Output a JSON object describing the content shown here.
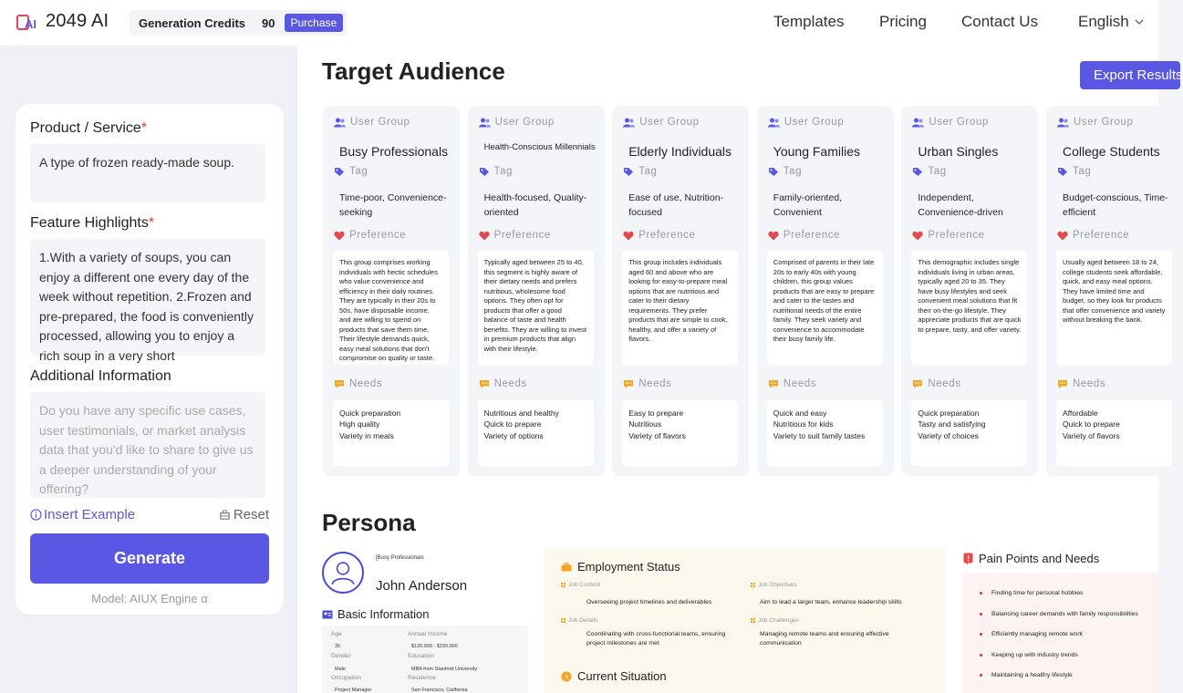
{
  "header": {
    "logo_text": "2049 AI",
    "credits_label": "Generation Credits",
    "credits_count": "90",
    "purchase_label": "Purchase",
    "nav": [
      "Templates",
      "Pricing",
      "Contact Us"
    ],
    "language": "English"
  },
  "form": {
    "product_label": "Product / Service",
    "product_value": "A type of frozen ready-made soup.",
    "features_label": "Feature Highlights",
    "features_value": "1.With a variety of soups, you can enjoy a different one every day of the week without repetition. 2.Frozen and pre-prepared, the food is conveniently processed, allowing you to enjoy a rich soup in a very short",
    "additional_label": "Additional Information",
    "additional_placeholder": "Do you have any specific use cases, user testimonials, or market analysis data that you'd like to share to give us a deeper understanding of your offering?",
    "insert_example": "Insert Example",
    "reset": "Reset",
    "generate": "Generate",
    "model": "Model: AIUX Engine α"
  },
  "audience": {
    "title": "Target Audience",
    "export_label": "Export Results",
    "section_labels": {
      "group": "User Group",
      "tag": "Tag",
      "preference": "Preference",
      "needs": "Needs"
    },
    "cards": [
      {
        "group": "Busy Professionals",
        "tag": "Time-poor, Convenience-seeking",
        "preference": "This group comprises working individuals with hectic schedules who value convenience and efficiency in their daily routines. They are typically in their 20s to 50s, have disposable income, and are willing to spend on products that save them time. Their lifestyle demands quick, easy meal solutions that don't compromise on quality or taste.",
        "needs": [
          "Quick preparation",
          "High quality",
          "Variety in meals"
        ]
      },
      {
        "group": "Health-Conscious Millennials",
        "tag": "Health-focused, Quality-oriented",
        "preference": "Typically aged between 25 to 40, this segment is highly aware of their dietary needs and prefers nutritious, wholesome food options. They often opt for products that offer a good balance of taste and health benefits. They are willing to invest in premium products that align with their lifestyle.",
        "needs": [
          "Nutritious and healthy",
          "Quick to prepare",
          "Variety of options"
        ]
      },
      {
        "group": "Elderly Individuals",
        "tag": "Ease of use, Nutrition-focused",
        "preference": "This group includes individuals aged 60 and above who are looking for easy-to-prepare meal options that are nutritious and cater to their dietary requirements. They prefer products that are simple to cook, healthy, and offer a variety of flavors.",
        "needs": [
          "Easy to prepare",
          "Nutritious",
          "Variety of flavors"
        ]
      },
      {
        "group": "Young Families",
        "tag": "Family-oriented, Convenient",
        "preference": "Comprised of parents in their late 20s to early 40s with young children, this group values products that are easy to prepare and cater to the tastes and nutritional needs of the entire family. They seek variety and convenience to accommodate their busy family life.",
        "needs": [
          "Quick and easy",
          "Nutritious for kids",
          "Variety to suit family tastes"
        ]
      },
      {
        "group": "Urban Singles",
        "tag": "Independent, Convenience-driven",
        "preference": "This demographic includes single individuals living in urban areas, typically aged 20 to 35. They have busy lifestyles and seek convenient meal solutions that fit their on-the-go lifestyle. They appreciate products that are quick to prepare, tasty, and offer variety.",
        "needs": [
          "Quick preparation",
          "Tasty and satisfying",
          "Variety of choices"
        ]
      },
      {
        "group": "College Students",
        "tag": "Budget-conscious, Time-efficient",
        "preference": "Usually aged between 18 to 24, college students seek affordable, quick, and easy meal options. They have limited time and budget, so they look for products that offer convenience and variety without breaking the bank.",
        "needs": [
          "Affordable",
          "Quick to prepare",
          "Variety of flavors"
        ]
      }
    ]
  },
  "persona": {
    "title": "Persona",
    "tag": "[Busy Professionals",
    "name": "John Anderson",
    "basic_info_title": "Basic Information",
    "basic": {
      "age_label": "Age",
      "age": "35",
      "income_label": "Annual Income",
      "income": "$120,000 - $150,000",
      "gender_label": "Gender",
      "gender": "Male",
      "education_label": "Education",
      "education": "MBA from Stanford University",
      "occupation_label": "Occupation",
      "occupation": "Project Manager",
      "residence_label": "Residence",
      "residence": "San Francisco, California"
    },
    "employment_title": "Employment Status",
    "job_content_label": "Job Content",
    "job_content": "Overseeing project timelines and deliverables",
    "job_objectives_label": "Job Objectives",
    "job_objectives": "Aim to lead a larger team, enhance leadership skills",
    "job_details_label": "Job Details",
    "job_details": "Coordinating with cross-functional teams, ensuring project milestones are met",
    "job_challenges_label": "Job Challenges",
    "job_challenges": "Managing remote teams and ensuring effective communication",
    "current_title": "Current Situation",
    "pain_title": "Pain Points and Needs",
    "pain_points": [
      "Finding time for personal hobbies",
      "Balancing career demands with family responsibilities",
      "Efficiently managing remote work",
      "Keeping up with industry trends",
      "Maintaining a healthy lifestyle"
    ]
  },
  "colors": {
    "accent": "#5b57e5",
    "required": "#e53935"
  }
}
